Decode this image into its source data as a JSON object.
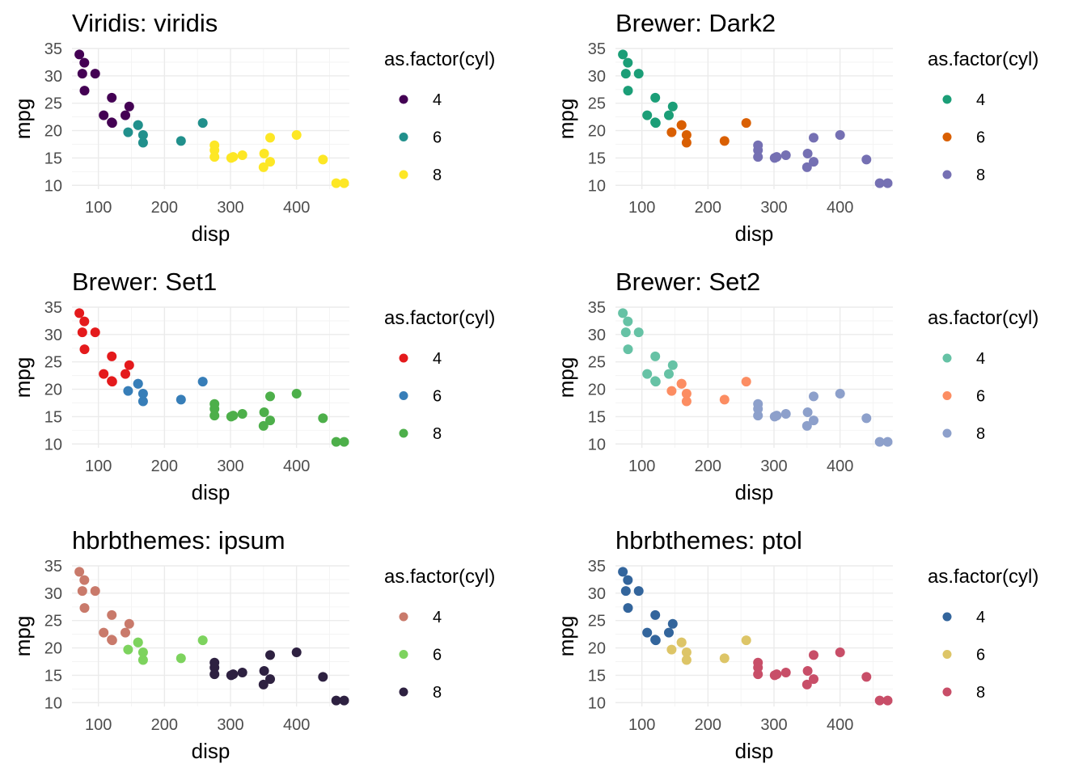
{
  "chart_data": [
    {
      "type": "scatter",
      "title": "Viridis: viridis",
      "xlabel": "disp",
      "ylabel": "mpg",
      "xlim": [
        60,
        480
      ],
      "ylim": [
        9.3,
        35
      ],
      "xticks": [
        "100",
        "200",
        "300",
        "400"
      ],
      "yticks": [
        "10",
        "15",
        "20",
        "25",
        "30",
        "35"
      ],
      "legend": {
        "title": "as.factor(cyl)",
        "position": "right",
        "labels": [
          "4",
          "6",
          "8"
        ],
        "colors": [
          "#440154",
          "#21908C",
          "#FDE725"
        ]
      },
      "series": [
        {
          "name": "4",
          "points": [
            [
              108,
              22.8
            ],
            [
              146.7,
              24.4
            ],
            [
              140.8,
              22.8
            ],
            [
              78.7,
              32.4
            ],
            [
              75.7,
              30.4
            ],
            [
              71.1,
              33.9
            ],
            [
              120.1,
              21.5
            ],
            [
              79,
              27.3
            ],
            [
              120.3,
              26
            ],
            [
              95.1,
              30.4
            ],
            [
              121,
              21.4
            ]
          ]
        },
        {
          "name": "6",
          "points": [
            [
              160,
              21
            ],
            [
              160,
              21
            ],
            [
              258,
              21.4
            ],
            [
              225,
              18.1
            ],
            [
              167.6,
              19.2
            ],
            [
              167.6,
              17.8
            ],
            [
              145,
              19.7
            ]
          ]
        },
        {
          "name": "8",
          "points": [
            [
              360,
              18.7
            ],
            [
              360,
              14.3
            ],
            [
              275.8,
              16.4
            ],
            [
              275.8,
              17.3
            ],
            [
              275.8,
              15.2
            ],
            [
              472,
              10.4
            ],
            [
              460,
              10.4
            ],
            [
              440,
              14.7
            ],
            [
              318,
              15.5
            ],
            [
              304,
              15.2
            ],
            [
              350,
              13.3
            ],
            [
              400,
              19.2
            ],
            [
              351,
              15.8
            ],
            [
              301,
              15
            ]
          ]
        }
      ]
    },
    {
      "type": "scatter",
      "title": "Brewer: Dark2",
      "xlabel": "disp",
      "ylabel": "mpg",
      "xlim": [
        60,
        480
      ],
      "ylim": [
        9.3,
        35
      ],
      "xticks": [
        "100",
        "200",
        "300",
        "400"
      ],
      "yticks": [
        "10",
        "15",
        "20",
        "25",
        "30",
        "35"
      ],
      "legend": {
        "title": "as.factor(cyl)",
        "position": "right",
        "labels": [
          "4",
          "6",
          "8"
        ],
        "colors": [
          "#1B9E77",
          "#D95F02",
          "#7570B3"
        ]
      },
      "series": [
        {
          "name": "4",
          "points": [
            [
              108,
              22.8
            ],
            [
              146.7,
              24.4
            ],
            [
              140.8,
              22.8
            ],
            [
              78.7,
              32.4
            ],
            [
              75.7,
              30.4
            ],
            [
              71.1,
              33.9
            ],
            [
              120.1,
              21.5
            ],
            [
              79,
              27.3
            ],
            [
              120.3,
              26
            ],
            [
              95.1,
              30.4
            ],
            [
              121,
              21.4
            ]
          ]
        },
        {
          "name": "6",
          "points": [
            [
              160,
              21
            ],
            [
              160,
              21
            ],
            [
              258,
              21.4
            ],
            [
              225,
              18.1
            ],
            [
              167.6,
              19.2
            ],
            [
              167.6,
              17.8
            ],
            [
              145,
              19.7
            ]
          ]
        },
        {
          "name": "8",
          "points": [
            [
              360,
              18.7
            ],
            [
              360,
              14.3
            ],
            [
              275.8,
              16.4
            ],
            [
              275.8,
              17.3
            ],
            [
              275.8,
              15.2
            ],
            [
              472,
              10.4
            ],
            [
              460,
              10.4
            ],
            [
              440,
              14.7
            ],
            [
              318,
              15.5
            ],
            [
              304,
              15.2
            ],
            [
              350,
              13.3
            ],
            [
              400,
              19.2
            ],
            [
              351,
              15.8
            ],
            [
              301,
              15
            ]
          ]
        }
      ]
    },
    {
      "type": "scatter",
      "title": "Brewer: Set1",
      "xlabel": "disp",
      "ylabel": "mpg",
      "xlim": [
        60,
        480
      ],
      "ylim": [
        9.3,
        35
      ],
      "xticks": [
        "100",
        "200",
        "300",
        "400"
      ],
      "yticks": [
        "10",
        "15",
        "20",
        "25",
        "30",
        "35"
      ],
      "legend": {
        "title": "as.factor(cyl)",
        "position": "right",
        "labels": [
          "4",
          "6",
          "8"
        ],
        "colors": [
          "#E41A1C",
          "#377EB8",
          "#4DAF4A"
        ]
      },
      "series": [
        {
          "name": "4",
          "points": [
            [
              108,
              22.8
            ],
            [
              146.7,
              24.4
            ],
            [
              140.8,
              22.8
            ],
            [
              78.7,
              32.4
            ],
            [
              75.7,
              30.4
            ],
            [
              71.1,
              33.9
            ],
            [
              120.1,
              21.5
            ],
            [
              79,
              27.3
            ],
            [
              120.3,
              26
            ],
            [
              95.1,
              30.4
            ],
            [
              121,
              21.4
            ]
          ]
        },
        {
          "name": "6",
          "points": [
            [
              160,
              21
            ],
            [
              160,
              21
            ],
            [
              258,
              21.4
            ],
            [
              225,
              18.1
            ],
            [
              167.6,
              19.2
            ],
            [
              167.6,
              17.8
            ],
            [
              145,
              19.7
            ]
          ]
        },
        {
          "name": "8",
          "points": [
            [
              360,
              18.7
            ],
            [
              360,
              14.3
            ],
            [
              275.8,
              16.4
            ],
            [
              275.8,
              17.3
            ],
            [
              275.8,
              15.2
            ],
            [
              472,
              10.4
            ],
            [
              460,
              10.4
            ],
            [
              440,
              14.7
            ],
            [
              318,
              15.5
            ],
            [
              304,
              15.2
            ],
            [
              350,
              13.3
            ],
            [
              400,
              19.2
            ],
            [
              351,
              15.8
            ],
            [
              301,
              15
            ]
          ]
        }
      ]
    },
    {
      "type": "scatter",
      "title": "Brewer: Set2",
      "xlabel": "disp",
      "ylabel": "mpg",
      "xlim": [
        60,
        480
      ],
      "ylim": [
        9.3,
        35
      ],
      "xticks": [
        "100",
        "200",
        "300",
        "400"
      ],
      "yticks": [
        "10",
        "15",
        "20",
        "25",
        "30",
        "35"
      ],
      "legend": {
        "title": "as.factor(cyl)",
        "position": "right",
        "labels": [
          "4",
          "6",
          "8"
        ],
        "colors": [
          "#66C2A5",
          "#FC8D62",
          "#8DA0CB"
        ]
      },
      "series": [
        {
          "name": "4",
          "points": [
            [
              108,
              22.8
            ],
            [
              146.7,
              24.4
            ],
            [
              140.8,
              22.8
            ],
            [
              78.7,
              32.4
            ],
            [
              75.7,
              30.4
            ],
            [
              71.1,
              33.9
            ],
            [
              120.1,
              21.5
            ],
            [
              79,
              27.3
            ],
            [
              120.3,
              26
            ],
            [
              95.1,
              30.4
            ],
            [
              121,
              21.4
            ]
          ]
        },
        {
          "name": "6",
          "points": [
            [
              160,
              21
            ],
            [
              160,
              21
            ],
            [
              258,
              21.4
            ],
            [
              225,
              18.1
            ],
            [
              167.6,
              19.2
            ],
            [
              167.6,
              17.8
            ],
            [
              145,
              19.7
            ]
          ]
        },
        {
          "name": "8",
          "points": [
            [
              360,
              18.7
            ],
            [
              360,
              14.3
            ],
            [
              275.8,
              16.4
            ],
            [
              275.8,
              17.3
            ],
            [
              275.8,
              15.2
            ],
            [
              472,
              10.4
            ],
            [
              460,
              10.4
            ],
            [
              440,
              14.7
            ],
            [
              318,
              15.5
            ],
            [
              304,
              15.2
            ],
            [
              350,
              13.3
            ],
            [
              400,
              19.2
            ],
            [
              351,
              15.8
            ],
            [
              301,
              15
            ]
          ]
        }
      ]
    },
    {
      "type": "scatter",
      "title": "hbrbthemes: ipsum",
      "xlabel": "disp",
      "ylabel": "mpg",
      "xlim": [
        60,
        480
      ],
      "ylim": [
        9.3,
        35
      ],
      "xticks": [
        "100",
        "200",
        "300",
        "400"
      ],
      "yticks": [
        "10",
        "15",
        "20",
        "25",
        "30",
        "35"
      ],
      "legend": {
        "title": "as.factor(cyl)",
        "position": "right",
        "labels": [
          "4",
          "6",
          "8"
        ],
        "colors": [
          "#C97A6B",
          "#7DD35E",
          "#2E2141"
        ]
      },
      "series": [
        {
          "name": "4",
          "points": [
            [
              108,
              22.8
            ],
            [
              146.7,
              24.4
            ],
            [
              140.8,
              22.8
            ],
            [
              78.7,
              32.4
            ],
            [
              75.7,
              30.4
            ],
            [
              71.1,
              33.9
            ],
            [
              120.1,
              21.5
            ],
            [
              79,
              27.3
            ],
            [
              120.3,
              26
            ],
            [
              95.1,
              30.4
            ],
            [
              121,
              21.4
            ]
          ]
        },
        {
          "name": "6",
          "points": [
            [
              160,
              21
            ],
            [
              160,
              21
            ],
            [
              258,
              21.4
            ],
            [
              225,
              18.1
            ],
            [
              167.6,
              19.2
            ],
            [
              167.6,
              17.8
            ],
            [
              145,
              19.7
            ]
          ]
        },
        {
          "name": "8",
          "points": [
            [
              360,
              18.7
            ],
            [
              360,
              14.3
            ],
            [
              275.8,
              16.4
            ],
            [
              275.8,
              17.3
            ],
            [
              275.8,
              15.2
            ],
            [
              472,
              10.4
            ],
            [
              460,
              10.4
            ],
            [
              440,
              14.7
            ],
            [
              318,
              15.5
            ],
            [
              304,
              15.2
            ],
            [
              350,
              13.3
            ],
            [
              400,
              19.2
            ],
            [
              351,
              15.8
            ],
            [
              301,
              15
            ]
          ]
        }
      ]
    },
    {
      "type": "scatter",
      "title": "hbrbthemes: ptol",
      "xlabel": "disp",
      "ylabel": "mpg",
      "xlim": [
        60,
        480
      ],
      "ylim": [
        9.3,
        35
      ],
      "xticks": [
        "100",
        "200",
        "300",
        "400"
      ],
      "yticks": [
        "10",
        "15",
        "20",
        "25",
        "30",
        "35"
      ],
      "legend": {
        "title": "as.factor(cyl)",
        "position": "right",
        "labels": [
          "4",
          "6",
          "8"
        ],
        "colors": [
          "#33659C",
          "#DDC567",
          "#C84E68"
        ]
      },
      "series": [
        {
          "name": "4",
          "points": [
            [
              108,
              22.8
            ],
            [
              146.7,
              24.4
            ],
            [
              140.8,
              22.8
            ],
            [
              78.7,
              32.4
            ],
            [
              75.7,
              30.4
            ],
            [
              71.1,
              33.9
            ],
            [
              120.1,
              21.5
            ],
            [
              79,
              27.3
            ],
            [
              120.3,
              26
            ],
            [
              95.1,
              30.4
            ],
            [
              121,
              21.4
            ]
          ]
        },
        {
          "name": "6",
          "points": [
            [
              160,
              21
            ],
            [
              160,
              21
            ],
            [
              258,
              21.4
            ],
            [
              225,
              18.1
            ],
            [
              167.6,
              19.2
            ],
            [
              167.6,
              17.8
            ],
            [
              145,
              19.7
            ]
          ]
        },
        {
          "name": "8",
          "points": [
            [
              360,
              18.7
            ],
            [
              360,
              14.3
            ],
            [
              275.8,
              16.4
            ],
            [
              275.8,
              17.3
            ],
            [
              275.8,
              15.2
            ],
            [
              472,
              10.4
            ],
            [
              460,
              10.4
            ],
            [
              440,
              14.7
            ],
            [
              318,
              15.5
            ],
            [
              304,
              15.2
            ],
            [
              350,
              13.3
            ],
            [
              400,
              19.2
            ],
            [
              351,
              15.8
            ],
            [
              301,
              15
            ]
          ]
        }
      ]
    }
  ]
}
